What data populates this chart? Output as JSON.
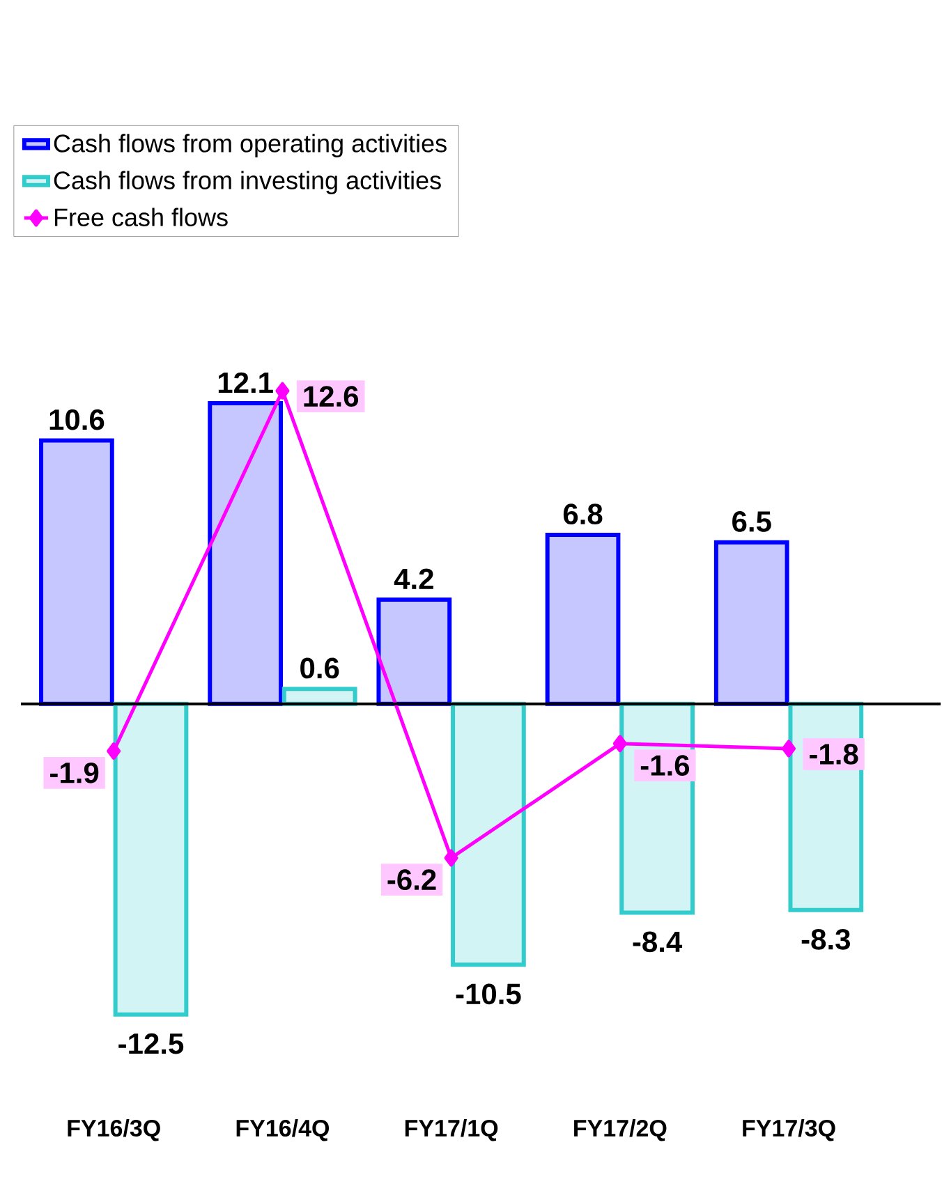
{
  "chart_data": {
    "type": "bar",
    "categories": [
      "FY16/3Q",
      "FY16/4Q",
      "FY17/1Q",
      "FY17/2Q",
      "FY17/3Q"
    ],
    "series": [
      {
        "name": "Cash flows from operating activities",
        "color": "#0000ff",
        "values": [
          10.6,
          12.1,
          4.2,
          6.8,
          6.5
        ]
      },
      {
        "name": "Cash flows from investing activities",
        "color": "#33cccc",
        "values": [
          -12.5,
          0.6,
          -10.5,
          -8.4,
          -8.3
        ]
      },
      {
        "name": "Free cash flows",
        "type": "line",
        "color": "#ff00ff",
        "marker": "diamond",
        "values": [
          -1.9,
          12.6,
          -6.2,
          -1.6,
          -1.8
        ]
      }
    ],
    "data_labels": true,
    "legend": "top left"
  }
}
